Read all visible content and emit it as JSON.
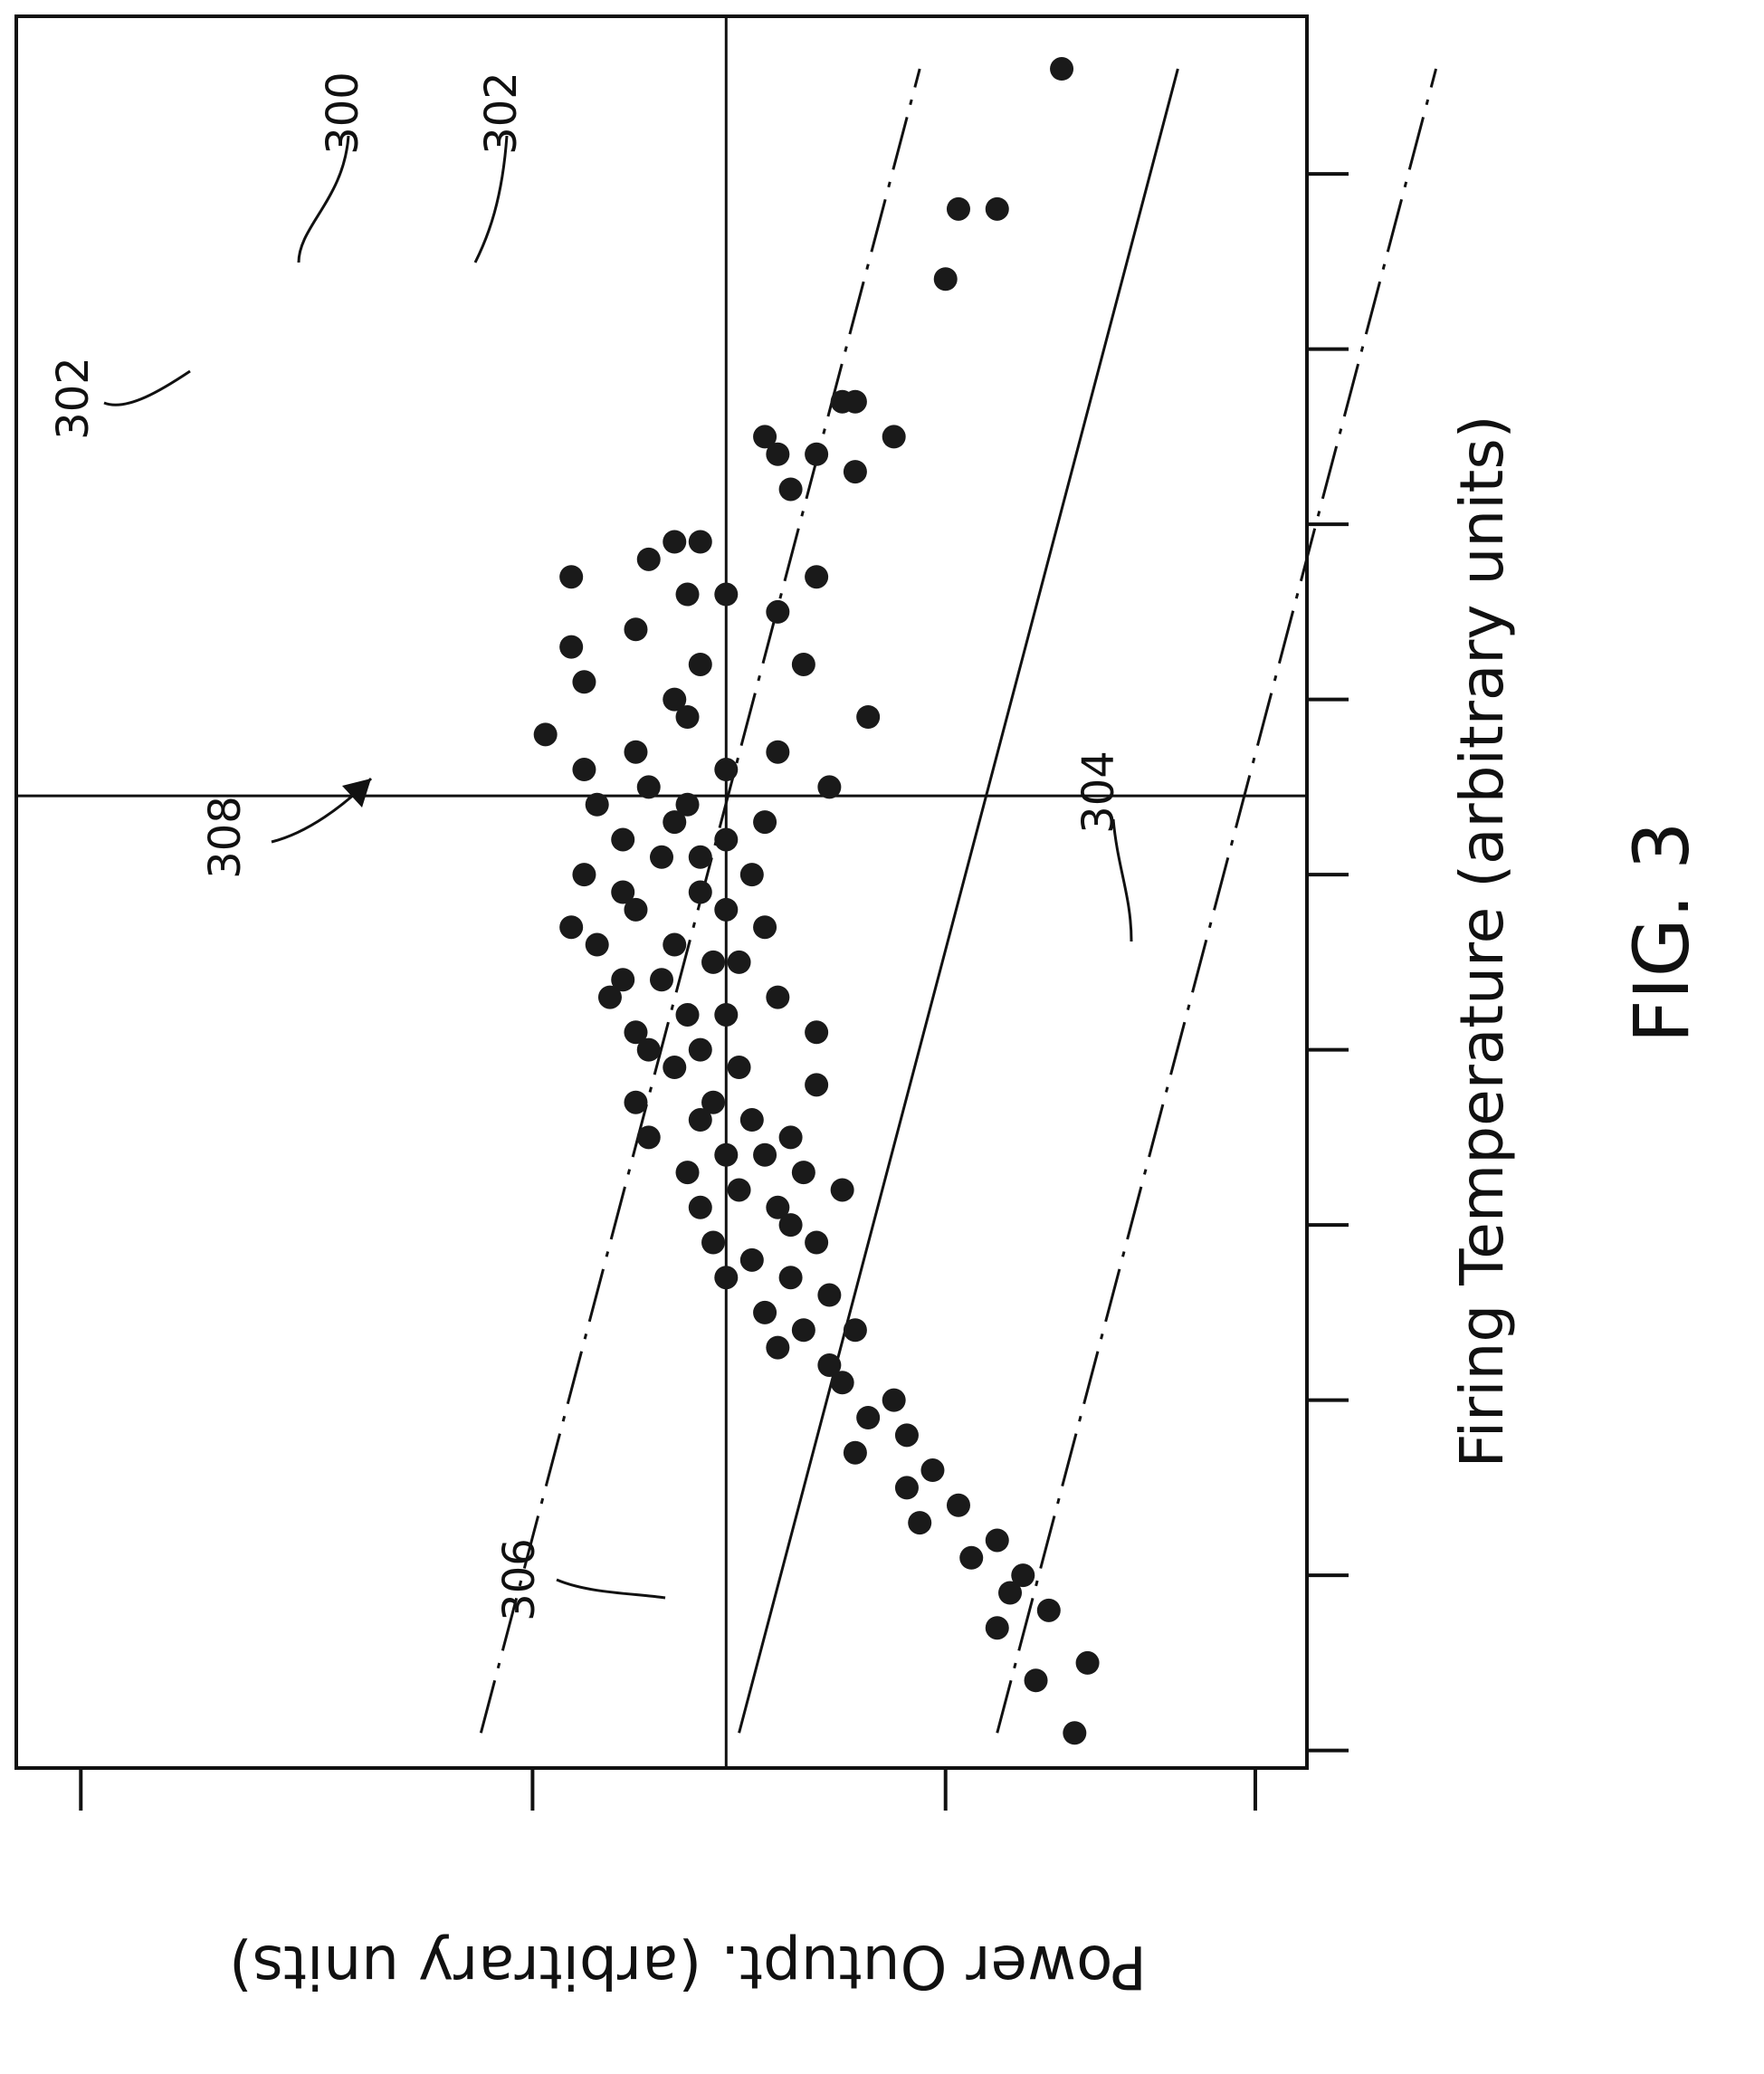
{
  "figure": {
    "label": "FIG. 3"
  },
  "chart_data": {
    "type": "scatter",
    "orientation": "rotated-90-cw",
    "xlabel": "Firing Temperature (arbitrary units)",
    "ylabel": "Power Outupt. (arbitrary units)",
    "xlim": [
      0,
      10
    ],
    "ylim": [
      0,
      10
    ],
    "grid": false,
    "legend": "none",
    "x_ticks": [
      0,
      1,
      2,
      3,
      4,
      5,
      6,
      7,
      8,
      9
    ],
    "y_ticks": [
      0.5,
      4.0,
      7.2,
      9.6
    ],
    "reference_lines": {
      "vertical_x": 5.55,
      "horizontal_y": 5.5
    },
    "fit_lines": [
      {
        "style": "solid",
        "label": "300",
        "x": [
          0.2,
          9.7
        ],
        "y": [
          5.6,
          9.0
        ]
      },
      {
        "style": "dashed",
        "label": "302",
        "x": [
          0.2,
          9.7
        ],
        "y": [
          3.6,
          7.0
        ]
      },
      {
        "style": "dashed",
        "label": "302",
        "x": [
          0.2,
          9.7
        ],
        "y": [
          7.6,
          11.0
        ]
      }
    ],
    "annotations": [
      {
        "text": "300",
        "target": "fit-line"
      },
      {
        "text": "302",
        "target": "upper-dashed-band"
      },
      {
        "text": "302",
        "target": "lower-dashed-band"
      },
      {
        "text": "304",
        "target": "vertical-reference-line"
      },
      {
        "text": "306",
        "target": "horizontal-reference-line"
      },
      {
        "text": "308",
        "target": "data-cluster"
      }
    ],
    "points": [
      [
        9.7,
        8.1
      ],
      [
        8.9,
        7.6
      ],
      [
        8.9,
        7.3
      ],
      [
        8.5,
        7.2
      ],
      [
        7.8,
        6.4
      ],
      [
        7.8,
        6.5
      ],
      [
        7.6,
        6.8
      ],
      [
        7.6,
        5.8
      ],
      [
        7.5,
        6.2
      ],
      [
        7.5,
        5.9
      ],
      [
        7.4,
        6.5
      ],
      [
        7.3,
        6.0
      ],
      [
        7.0,
        5.3
      ],
      [
        7.0,
        5.1
      ],
      [
        6.9,
        4.9
      ],
      [
        6.8,
        4.3
      ],
      [
        6.8,
        6.2
      ],
      [
        6.7,
        5.5
      ],
      [
        6.7,
        5.2
      ],
      [
        6.6,
        5.9
      ],
      [
        6.5,
        4.8
      ],
      [
        6.4,
        4.3
      ],
      [
        6.3,
        5.3
      ],
      [
        6.3,
        6.1
      ],
      [
        6.2,
        4.4
      ],
      [
        6.1,
        5.1
      ],
      [
        6.0,
        5.2
      ],
      [
        6.0,
        6.6
      ],
      [
        5.9,
        4.1
      ],
      [
        5.8,
        4.8
      ],
      [
        5.8,
        5.9
      ],
      [
        5.7,
        4.4
      ],
      [
        5.7,
        5.5
      ],
      [
        5.6,
        6.3
      ],
      [
        5.6,
        4.9
      ],
      [
        5.5,
        5.2
      ],
      [
        5.5,
        4.5
      ],
      [
        5.4,
        5.8
      ],
      [
        5.4,
        5.1
      ],
      [
        5.3,
        4.7
      ],
      [
        5.3,
        5.5
      ],
      [
        5.2,
        5.3
      ],
      [
        5.2,
        5.0
      ],
      [
        5.1,
        4.4
      ],
      [
        5.1,
        5.7
      ],
      [
        5.0,
        4.7
      ],
      [
        5.0,
        5.3
      ],
      [
        4.9,
        5.5
      ],
      [
        4.9,
        4.8
      ],
      [
        4.8,
        4.3
      ],
      [
        4.8,
        5.8
      ],
      [
        4.7,
        5.1
      ],
      [
        4.7,
        4.5
      ],
      [
        4.6,
        5.4
      ],
      [
        4.6,
        5.6
      ],
      [
        4.5,
        4.7
      ],
      [
        4.5,
        5.0
      ],
      [
        4.4,
        5.9
      ],
      [
        4.4,
        4.6
      ],
      [
        4.3,
        5.2
      ],
      [
        4.3,
        5.5
      ],
      [
        4.2,
        4.8
      ],
      [
        4.2,
        6.2
      ],
      [
        4.1,
        5.3
      ],
      [
        4.1,
        4.9
      ],
      [
        4.0,
        5.6
      ],
      [
        4.0,
        5.1
      ],
      [
        3.9,
        6.2
      ],
      [
        3.8,
        4.8
      ],
      [
        3.8,
        5.4
      ],
      [
        3.7,
        5.3
      ],
      [
        3.7,
        5.7
      ],
      [
        3.6,
        6.0
      ],
      [
        3.6,
        4.9
      ],
      [
        3.5,
        5.5
      ],
      [
        3.5,
        5.8
      ],
      [
        3.4,
        5.2
      ],
      [
        3.4,
        6.1
      ],
      [
        3.3,
        5.6
      ],
      [
        3.3,
        6.4
      ],
      [
        3.2,
        5.9
      ],
      [
        3.2,
        5.3
      ],
      [
        3.1,
        6.0
      ],
      [
        3.0,
        5.4
      ],
      [
        3.0,
        6.2
      ],
      [
        2.9,
        5.7
      ],
      [
        2.8,
        6.0
      ],
      [
        2.8,
        5.5
      ],
      [
        2.7,
        6.3
      ],
      [
        2.6,
        5.8
      ],
      [
        2.5,
        6.5
      ],
      [
        2.5,
        6.1
      ],
      [
        2.4,
        5.9
      ],
      [
        2.3,
        6.3
      ],
      [
        2.2,
        6.4
      ],
      [
        2.1,
        6.8
      ],
      [
        2.0,
        6.6
      ],
      [
        1.9,
        6.9
      ],
      [
        1.8,
        6.5
      ],
      [
        1.7,
        7.1
      ],
      [
        1.6,
        6.9
      ],
      [
        1.5,
        7.3
      ],
      [
        1.4,
        7.0
      ],
      [
        1.3,
        7.6
      ],
      [
        1.2,
        7.4
      ],
      [
        1.1,
        7.8
      ],
      [
        1.0,
        7.7
      ],
      [
        0.9,
        8.0
      ],
      [
        0.8,
        7.6
      ],
      [
        0.6,
        8.3
      ],
      [
        0.5,
        7.9
      ],
      [
        0.2,
        8.2
      ]
    ]
  }
}
